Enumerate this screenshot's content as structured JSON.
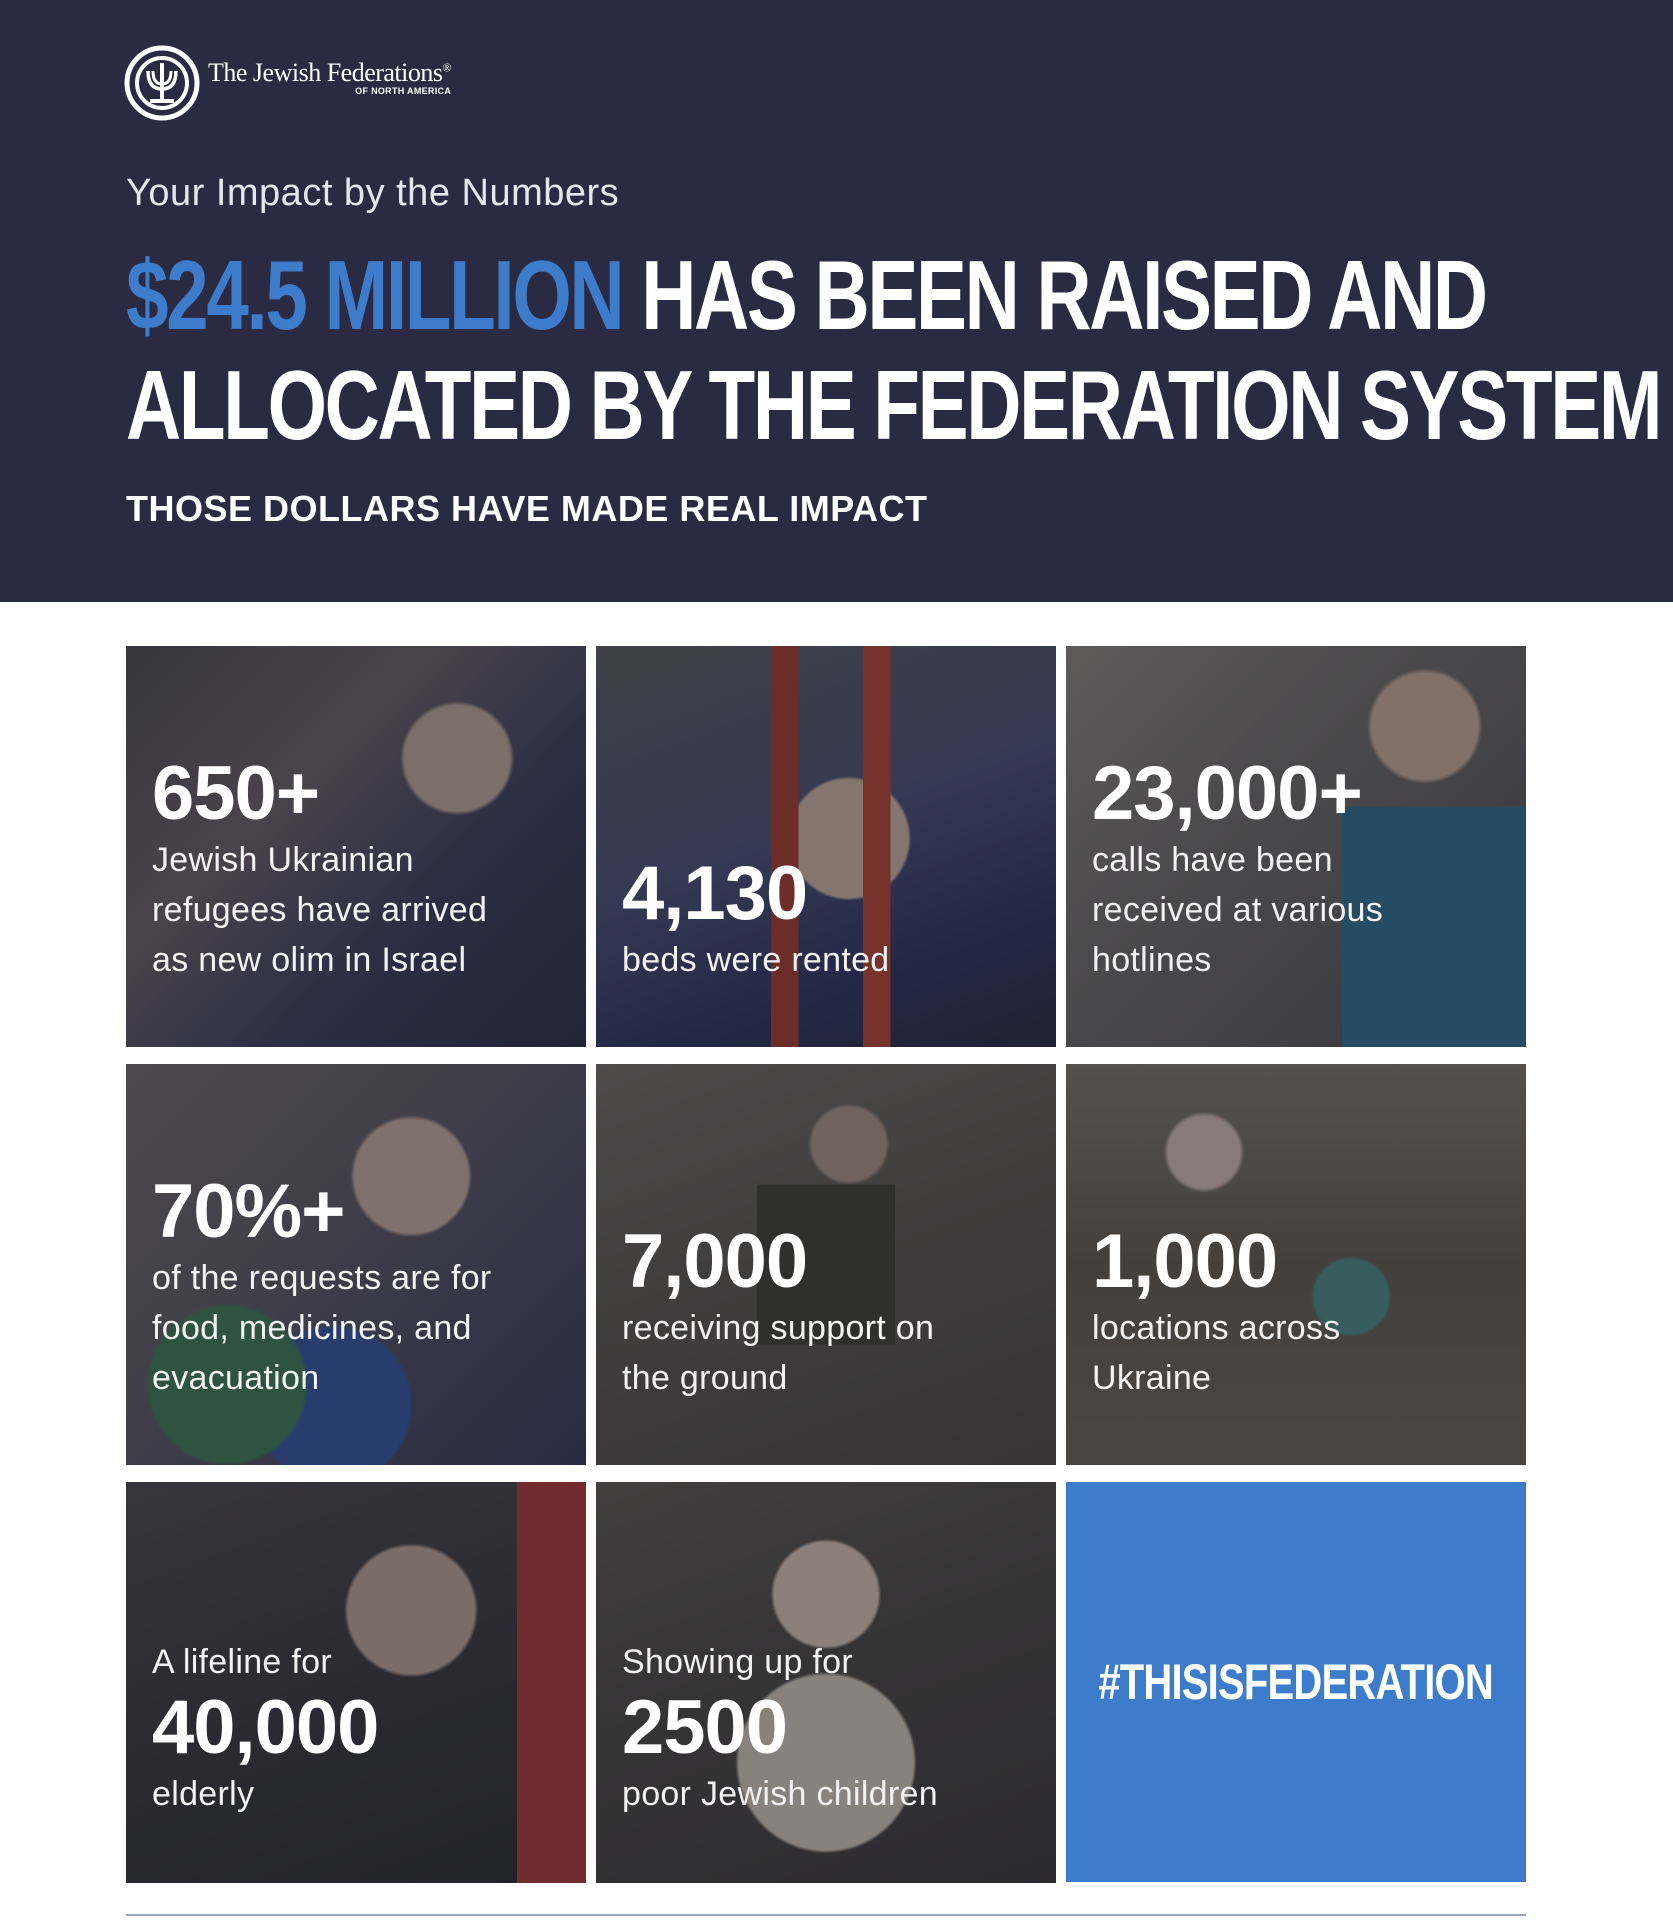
{
  "logo": {
    "name": "The Jewish Federations",
    "registered": "®",
    "sub": "OF NORTH AMERICA",
    "icon": "menorah-circle-icon"
  },
  "header": {
    "kicker": "Your Impact by the Numbers",
    "amount": "$24.5 MILLION",
    "headline_line1_rest": " HAS BEEN RAISED AND",
    "headline_line2": "ALLOCATED BY THE FEDERATION SYSTEM",
    "subhead": "THOSE DOLLARS HAVE MADE REAL IMPACT"
  },
  "colors": {
    "navy": "#2a2b42",
    "accent_blue": "#3d7cca"
  },
  "tiles": [
    {
      "big": "650+",
      "lines": [
        "Jewish Ukrainian",
        "refugees have arrived",
        "as new olim in Israel"
      ]
    },
    {
      "big": "4,130",
      "lines": [
        "beds were rented"
      ]
    },
    {
      "big": "23,000+",
      "lines": [
        "calls have been",
        "received at various",
        "hotlines"
      ]
    },
    {
      "big": "70%+",
      "lines": [
        "of the requests are for",
        "food, medicines, and",
        "evacuation"
      ]
    },
    {
      "big": "7,000",
      "lines": [
        "receiving support on",
        "the ground"
      ]
    },
    {
      "big": "1,000",
      "lines": [
        "locations across",
        "Ukraine"
      ]
    },
    {
      "pre": "A lifeline for",
      "big": "40,000",
      "lines": [
        "elderly"
      ]
    },
    {
      "pre": "Showing up for",
      "big": "2500",
      "lines": [
        "poor Jewish children"
      ]
    }
  ],
  "hashtag": "#THISISFEDERATION"
}
